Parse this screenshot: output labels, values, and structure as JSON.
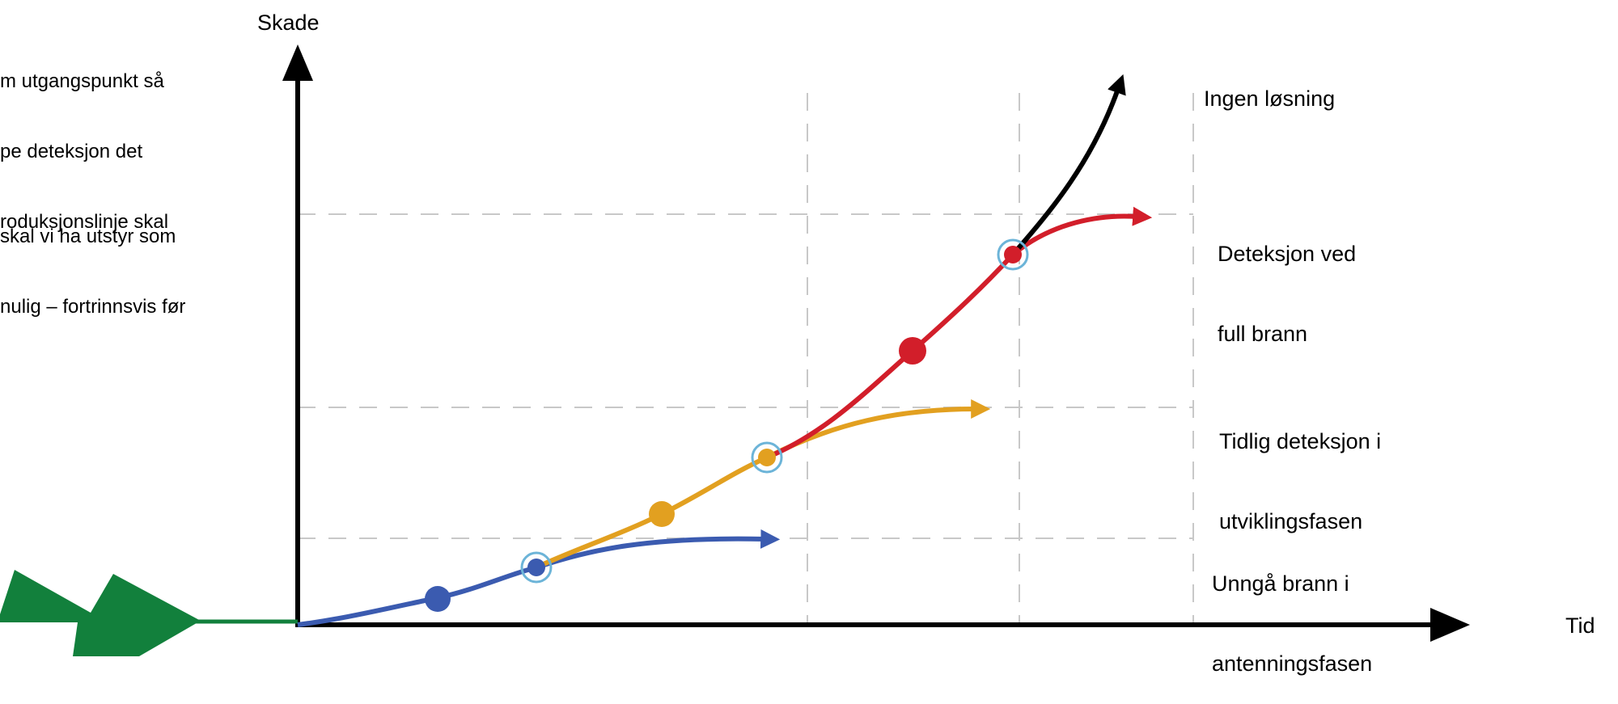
{
  "side_text": {
    "paragraph_1": [
      "m utgangspunkt så",
      "pe deteksjon det",
      "roduksjonslinje skal"
    ],
    "paragraph_2": [
      "skal vi ha utstyr som",
      "nulig – fortrinnsvis før"
    ]
  },
  "axes": {
    "y_label": "Skade",
    "x_label": "Tid"
  },
  "curves": [
    {
      "name": "black",
      "label_lines": [
        "Ingen løsning"
      ],
      "color": "#000000"
    },
    {
      "name": "red",
      "label_lines": [
        "Deteksjon ved",
        "full brann"
      ],
      "color": "#d21e2a"
    },
    {
      "name": "orange",
      "label_lines": [
        "Tidlig deteksjon i",
        "utviklingsfasen"
      ],
      "color": "#e2a020"
    },
    {
      "name": "blue",
      "label_lines": [
        "Unngå brann i",
        "antenningsfasen"
      ],
      "color": "#3b5bb0"
    }
  ],
  "colors": {
    "pointer_arrow": "#12803c",
    "gridline": "#c8c8c8",
    "marker_ring": "#6cb4d8"
  }
}
